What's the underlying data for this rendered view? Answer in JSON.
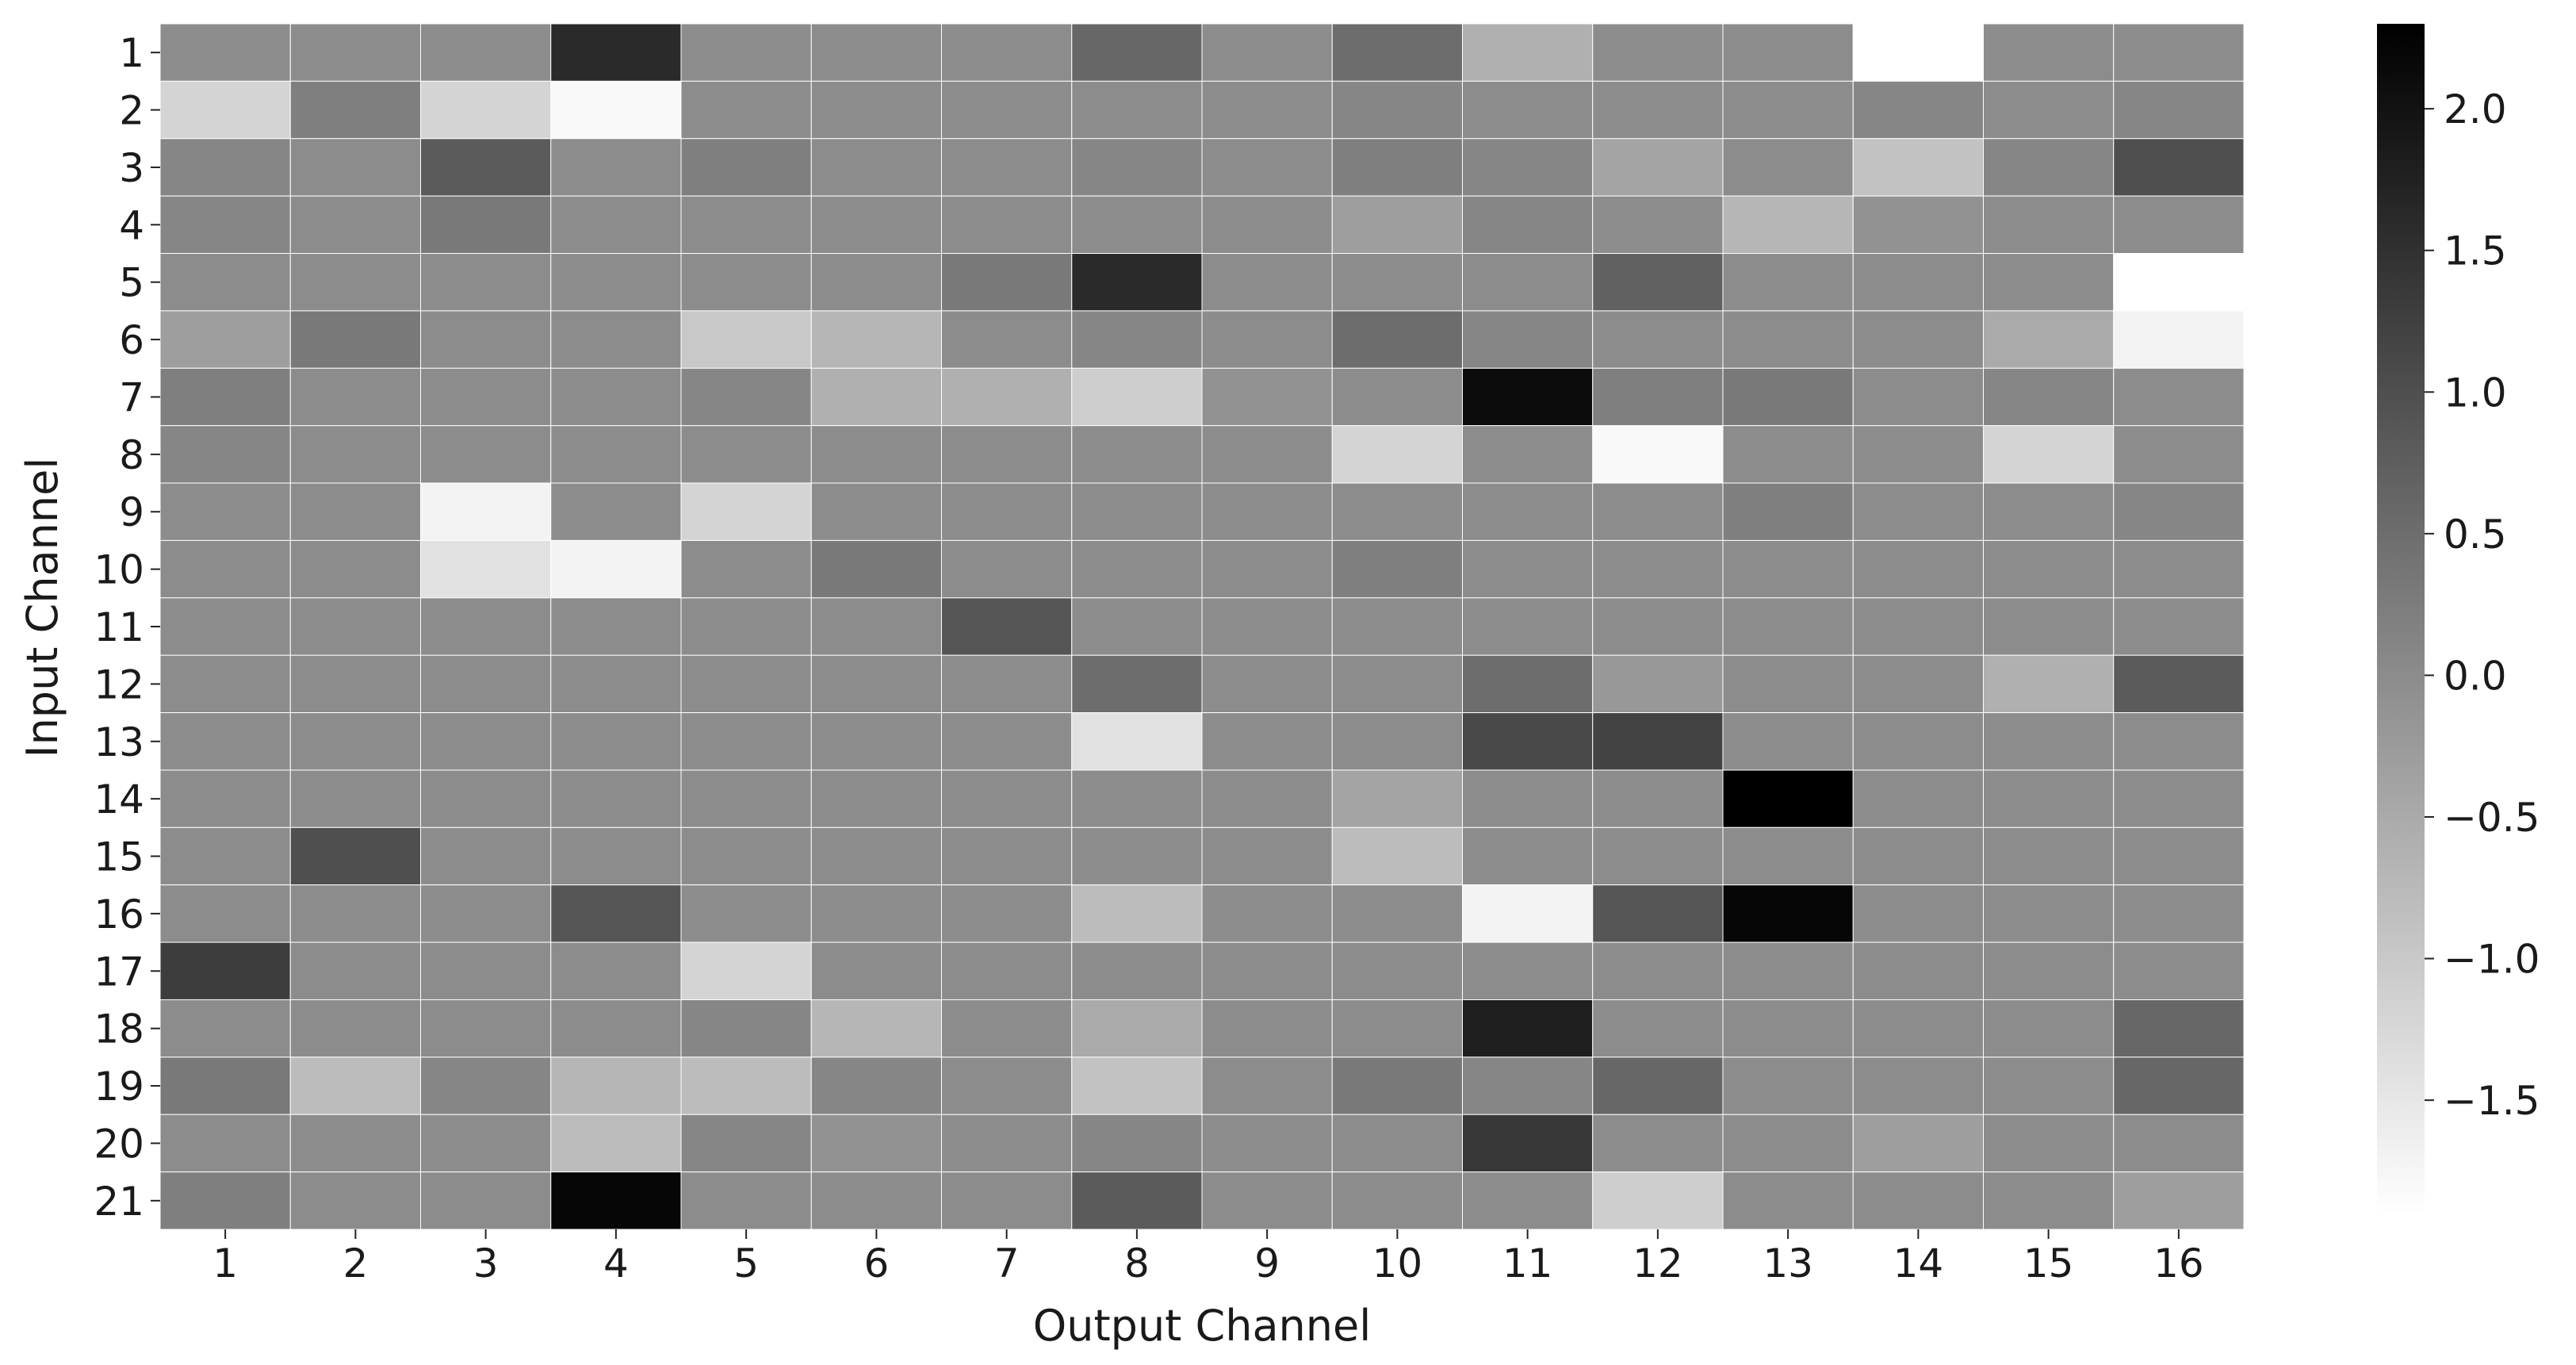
{
  "chart_data": {
    "type": "heatmap",
    "title": "",
    "xlabel": "Output Channel",
    "ylabel": "Input Channel",
    "x_categories": [
      "1",
      "2",
      "3",
      "4",
      "5",
      "6",
      "7",
      "8",
      "9",
      "10",
      "11",
      "12",
      "13",
      "14",
      "15",
      "16"
    ],
    "y_categories": [
      "1",
      "2",
      "3",
      "4",
      "5",
      "6",
      "7",
      "8",
      "9",
      "10",
      "11",
      "12",
      "13",
      "14",
      "15",
      "16",
      "17",
      "18",
      "19",
      "20",
      "21"
    ],
    "colorbar": {
      "min": -1.9,
      "max": 2.3,
      "ticks": [
        2.0,
        1.5,
        1.0,
        0.5,
        0.0,
        -0.5,
        -1.0,
        -1.5
      ],
      "tick_labels": [
        "2.0",
        "1.5",
        "1.0",
        "0.5",
        "0.0",
        "−0.5",
        "−1.0",
        "−1.5"
      ],
      "colormap": "Greys",
      "low_color": "#ffffff",
      "high_color": "#000000"
    },
    "grid": false,
    "values": [
      [
        0.0,
        0.0,
        0.0,
        1.6,
        0.0,
        0.0,
        0.0,
        0.6,
        0.0,
        0.5,
        -0.6,
        0.0,
        0.0,
        -1.9,
        0.0,
        0.0
      ],
      [
        -1.2,
        0.2,
        -1.2,
        -1.8,
        0.0,
        0.0,
        0.0,
        0.0,
        0.0,
        0.1,
        0.0,
        0.0,
        0.0,
        0.1,
        0.0,
        0.1
      ],
      [
        0.1,
        0.0,
        0.8,
        0.0,
        0.2,
        0.0,
        0.0,
        0.1,
        0.0,
        0.2,
        0.1,
        -0.4,
        0.0,
        -0.9,
        0.1,
        1.0
      ],
      [
        0.1,
        0.0,
        0.3,
        0.0,
        0.0,
        0.0,
        0.0,
        0.0,
        0.0,
        -0.3,
        0.1,
        0.0,
        -0.7,
        -0.1,
        0.0,
        0.0
      ],
      [
        0.0,
        0.0,
        0.0,
        0.0,
        0.0,
        0.0,
        0.3,
        1.6,
        0.0,
        0.0,
        0.0,
        0.7,
        0.0,
        0.0,
        0.0,
        -1.9
      ],
      [
        -0.3,
        0.3,
        0.0,
        0.0,
        -1.0,
        -0.7,
        0.0,
        0.1,
        0.0,
        0.5,
        0.1,
        0.0,
        0.0,
        0.0,
        -0.5,
        -1.7
      ],
      [
        0.2,
        0.0,
        0.0,
        0.0,
        0.1,
        -0.6,
        -0.6,
        -1.1,
        -0.1,
        0.0,
        2.1,
        0.2,
        0.3,
        0.0,
        0.1,
        0.0
      ],
      [
        0.1,
        0.0,
        0.0,
        0.0,
        0.0,
        0.0,
        0.0,
        0.0,
        0.0,
        -1.2,
        0.0,
        -1.8,
        0.0,
        0.0,
        -1.2,
        0.0
      ],
      [
        0.0,
        0.0,
        -1.7,
        0.0,
        -1.2,
        0.0,
        0.0,
        0.0,
        0.0,
        0.0,
        0.0,
        0.0,
        0.2,
        0.0,
        0.0,
        0.1
      ],
      [
        0.0,
        0.0,
        -1.4,
        -1.7,
        0.0,
        0.3,
        0.0,
        0.0,
        0.0,
        0.2,
        0.0,
        0.0,
        0.0,
        0.0,
        0.0,
        0.0
      ],
      [
        0.0,
        0.0,
        0.0,
        0.0,
        0.0,
        0.0,
        0.9,
        0.0,
        0.0,
        0.0,
        0.0,
        0.0,
        0.0,
        0.0,
        0.0,
        0.0
      ],
      [
        0.0,
        0.0,
        0.0,
        0.0,
        0.0,
        0.0,
        0.0,
        0.5,
        0.0,
        0.0,
        0.5,
        -0.2,
        0.0,
        0.0,
        -0.6,
        0.8
      ],
      [
        0.0,
        0.0,
        0.0,
        0.0,
        0.0,
        0.0,
        0.0,
        -1.4,
        0.0,
        0.0,
        1.1,
        1.2,
        0.0,
        0.0,
        0.0,
        0.0
      ],
      [
        0.0,
        0.0,
        0.0,
        0.0,
        0.0,
        0.0,
        0.0,
        0.0,
        0.0,
        -0.4,
        0.0,
        0.0,
        2.3,
        0.0,
        0.0,
        0.0
      ],
      [
        0.0,
        1.0,
        0.0,
        0.0,
        0.0,
        0.0,
        0.0,
        0.0,
        0.0,
        -0.8,
        0.0,
        0.0,
        0.0,
        0.0,
        0.0,
        0.0
      ],
      [
        0.0,
        0.0,
        0.0,
        0.9,
        0.0,
        0.0,
        0.0,
        -0.8,
        0.0,
        0.0,
        -1.7,
        0.9,
        2.2,
        0.0,
        0.0,
        0.0
      ],
      [
        1.3,
        0.0,
        0.0,
        0.0,
        -1.2,
        0.0,
        0.0,
        0.0,
        0.0,
        0.0,
        0.0,
        0.0,
        0.0,
        0.0,
        0.0,
        0.0
      ],
      [
        0.0,
        0.0,
        0.0,
        0.0,
        0.1,
        -0.7,
        0.0,
        -0.5,
        0.0,
        0.0,
        1.8,
        0.0,
        0.0,
        0.0,
        0.0,
        0.6
      ],
      [
        0.3,
        -0.8,
        0.1,
        -0.7,
        -0.8,
        0.1,
        0.0,
        -0.9,
        0.0,
        0.3,
        0.1,
        0.6,
        0.0,
        0.0,
        0.0,
        0.6
      ],
      [
        0.0,
        0.0,
        0.0,
        -0.8,
        0.1,
        -0.1,
        0.0,
        0.1,
        0.0,
        0.0,
        1.4,
        0.0,
        0.0,
        -0.3,
        0.0,
        0.0
      ],
      [
        0.2,
        0.0,
        0.0,
        2.2,
        0.0,
        0.0,
        0.0,
        0.8,
        0.0,
        0.0,
        0.0,
        -1.1,
        0.0,
        0.0,
        0.0,
        -0.3
      ]
    ]
  }
}
